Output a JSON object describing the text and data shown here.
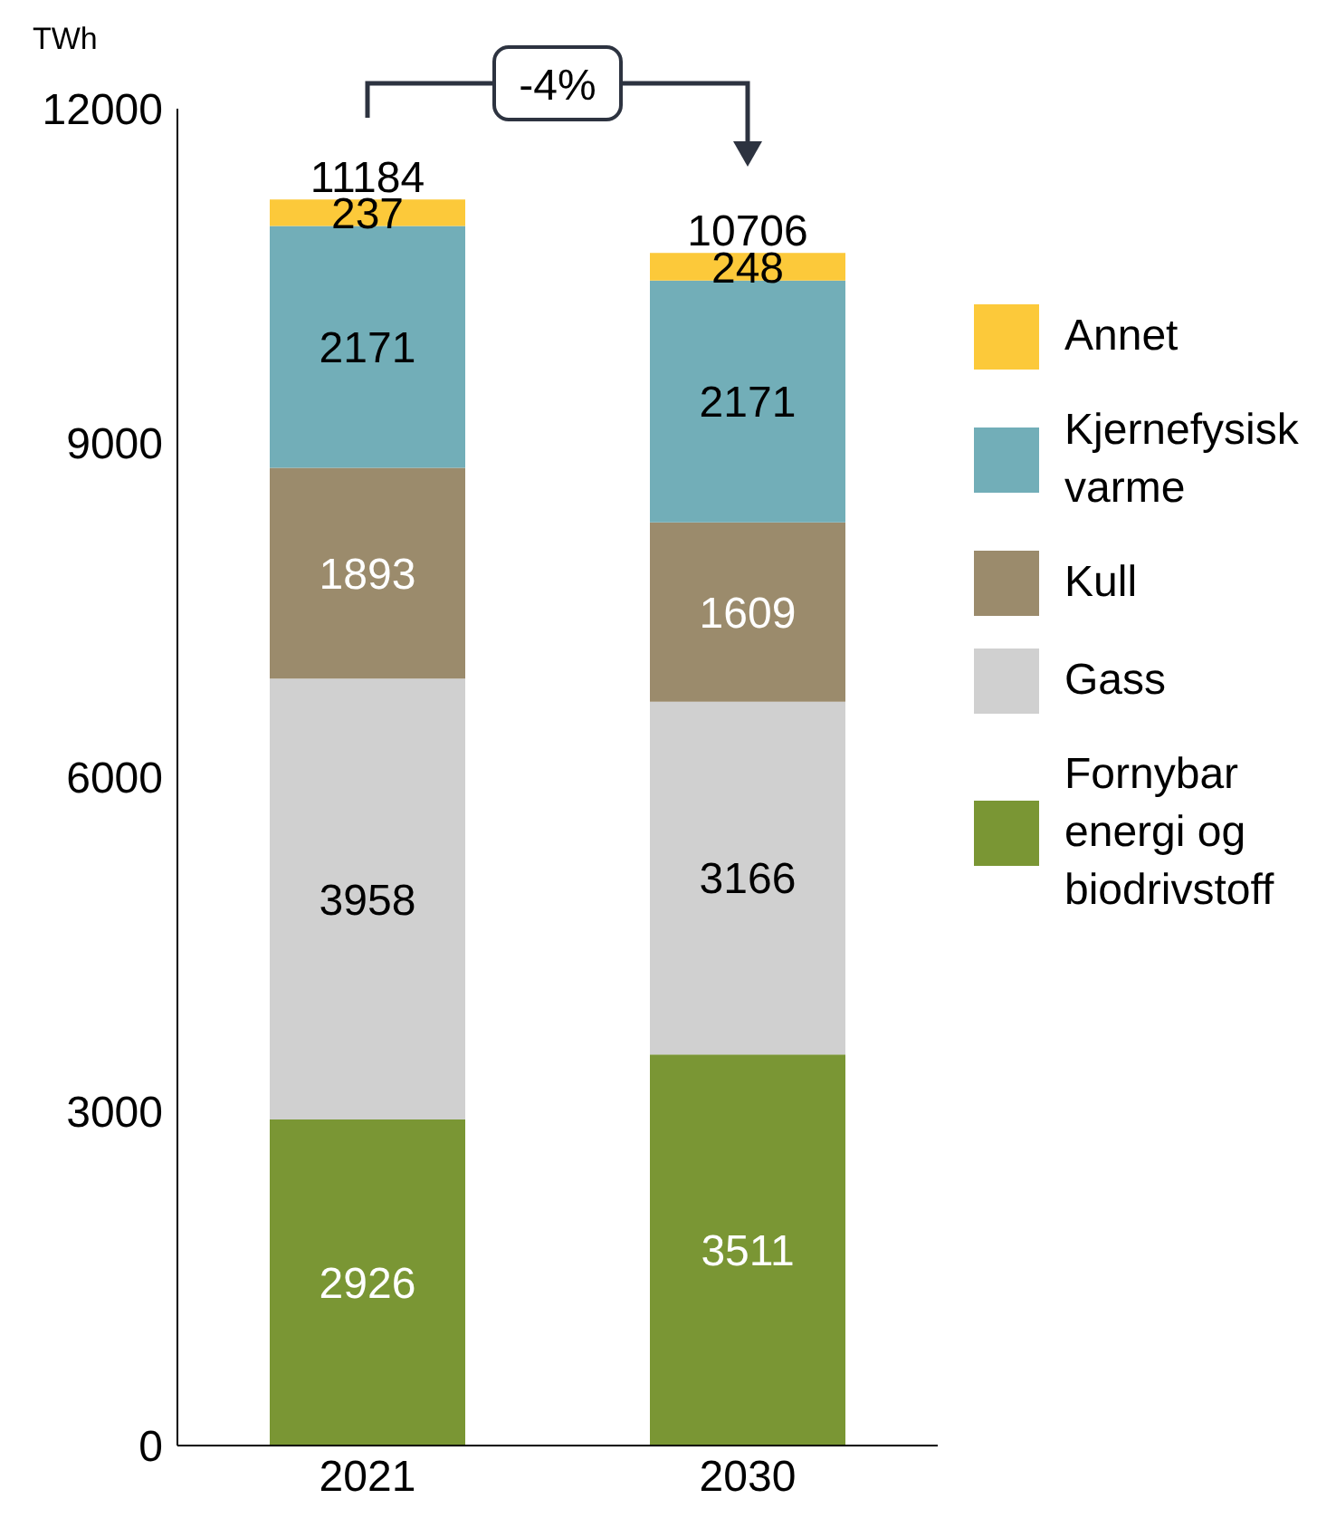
{
  "chart_data": {
    "type": "bar",
    "stacked": true,
    "ylabel": "TWh",
    "categories": [
      "2021",
      "2030"
    ],
    "series": [
      {
        "name": "Fornybar energi og biodrivstoff",
        "color": "#7a9634",
        "values": [
          2926,
          3511
        ]
      },
      {
        "name": "Gass",
        "color": "#d0d0d0",
        "values": [
          3958,
          3166
        ]
      },
      {
        "name": "Kull",
        "color": "#9b8b6c",
        "values": [
          1893,
          1609
        ]
      },
      {
        "name": "Kjernefysisk varme",
        "color": "#72aeb8",
        "values": [
          2171,
          2171
        ]
      },
      {
        "name": "Annet",
        "color": "#fcc93a",
        "values": [
          237,
          248
        ]
      }
    ],
    "totals": [
      "11184",
      "10706"
    ],
    "data_labels": true,
    "ylim": [
      0,
      12000
    ],
    "yticks": [
      0,
      3000,
      6000,
      9000,
      12000
    ],
    "grid": false,
    "legend": "right",
    "annotations": [
      "-4%"
    ]
  }
}
